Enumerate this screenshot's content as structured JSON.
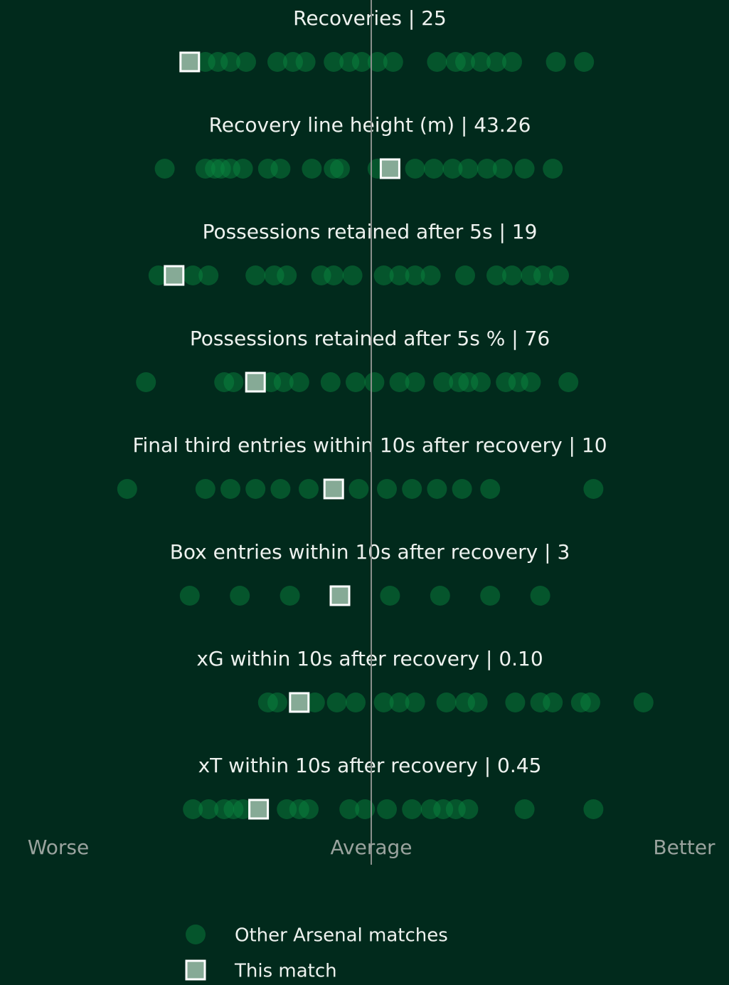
{
  "chart_data": {
    "type": "strip",
    "dot_color": "#0b8a40",
    "highlight_color": "#86aa96",
    "background": "#012a1c",
    "xlim": [
      -1,
      1
    ],
    "xticks": [
      {
        "value": -1,
        "label": "Worse"
      },
      {
        "value": 0,
        "label": "Average"
      },
      {
        "value": 1,
        "label": "Better"
      }
    ],
    "legend": [
      "Other Arsenal matches",
      "This match"
    ],
    "rows": [
      {
        "label": "Recoveries | 25",
        "highlight": -0.58,
        "values": [
          -0.53,
          -0.49,
          -0.45,
          -0.4,
          -0.3,
          -0.25,
          -0.21,
          -0.12,
          -0.07,
          -0.03,
          0.02,
          0.07,
          0.21,
          0.27,
          0.3,
          0.35,
          0.4,
          0.45,
          0.59,
          0.68
        ]
      },
      {
        "label": "Recovery line height (m) | 43.26",
        "highlight": 0.06,
        "values": [
          -0.66,
          -0.53,
          -0.5,
          -0.48,
          -0.45,
          -0.41,
          -0.33,
          -0.29,
          -0.19,
          -0.12,
          -0.1,
          0.02,
          0.14,
          0.2,
          0.26,
          0.31,
          0.37,
          0.42,
          0.49,
          0.58
        ]
      },
      {
        "label": "Possessions retained after 5s | 19",
        "highlight": -0.63,
        "values": [
          -0.68,
          -0.57,
          -0.52,
          -0.37,
          -0.31,
          -0.27,
          -0.16,
          -0.12,
          -0.06,
          0.04,
          0.09,
          0.14,
          0.19,
          0.3,
          0.4,
          0.45,
          0.51,
          0.55,
          0.6
        ]
      },
      {
        "label": "Possessions retained after 5s % | 76",
        "highlight": -0.37,
        "values": [
          -0.72,
          -0.47,
          -0.44,
          -0.32,
          -0.28,
          -0.23,
          -0.13,
          -0.05,
          0.01,
          0.09,
          0.14,
          0.23,
          0.28,
          0.31,
          0.35,
          0.43,
          0.47,
          0.51,
          0.63
        ]
      },
      {
        "label": "Final third entries within 10s after recovery | 10",
        "highlight": -0.12,
        "values": [
          -0.78,
          -0.53,
          -0.45,
          -0.37,
          -0.29,
          -0.2,
          -0.04,
          0.05,
          0.13,
          0.21,
          0.29,
          0.38,
          0.71
        ]
      },
      {
        "label": "Box entries within 10s after recovery | 3",
        "highlight": -0.1,
        "values": [
          -0.58,
          -0.42,
          -0.26,
          0.06,
          0.22,
          0.38,
          0.54
        ]
      },
      {
        "label": "xG within 10s after recovery | 0.10",
        "highlight": -0.23,
        "values": [
          -0.33,
          -0.3,
          -0.18,
          -0.11,
          -0.05,
          0.04,
          0.09,
          0.14,
          0.24,
          0.3,
          0.34,
          0.46,
          0.54,
          0.58,
          0.67,
          0.7,
          0.87
        ]
      },
      {
        "label": "xT within 10s after recovery | 0.45",
        "highlight": -0.36,
        "values": [
          -0.57,
          -0.52,
          -0.47,
          -0.44,
          -0.41,
          -0.27,
          -0.23,
          -0.2,
          -0.07,
          -0.02,
          0.05,
          0.13,
          0.19,
          0.23,
          0.27,
          0.31,
          0.49,
          0.71
        ]
      }
    ]
  }
}
